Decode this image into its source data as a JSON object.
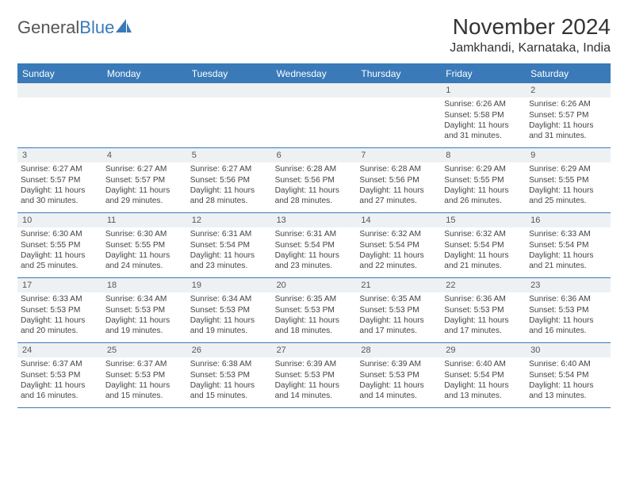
{
  "brand": {
    "part1": "General",
    "part2": "Blue"
  },
  "title": "November 2024",
  "location": "Jamkhandi, Karnataka, India",
  "dayHeaders": [
    "Sunday",
    "Monday",
    "Tuesday",
    "Wednesday",
    "Thursday",
    "Friday",
    "Saturday"
  ],
  "colors": {
    "accent": "#3a7ab8",
    "shade": "#eef1f4",
    "text": "#333333"
  },
  "startOffset": 5,
  "days": [
    {
      "n": 1,
      "sunrise": "6:26 AM",
      "sunset": "5:58 PM",
      "daylight": "11 hours and 31 minutes."
    },
    {
      "n": 2,
      "sunrise": "6:26 AM",
      "sunset": "5:57 PM",
      "daylight": "11 hours and 31 minutes."
    },
    {
      "n": 3,
      "sunrise": "6:27 AM",
      "sunset": "5:57 PM",
      "daylight": "11 hours and 30 minutes."
    },
    {
      "n": 4,
      "sunrise": "6:27 AM",
      "sunset": "5:57 PM",
      "daylight": "11 hours and 29 minutes."
    },
    {
      "n": 5,
      "sunrise": "6:27 AM",
      "sunset": "5:56 PM",
      "daylight": "11 hours and 28 minutes."
    },
    {
      "n": 6,
      "sunrise": "6:28 AM",
      "sunset": "5:56 PM",
      "daylight": "11 hours and 28 minutes."
    },
    {
      "n": 7,
      "sunrise": "6:28 AM",
      "sunset": "5:56 PM",
      "daylight": "11 hours and 27 minutes."
    },
    {
      "n": 8,
      "sunrise": "6:29 AM",
      "sunset": "5:55 PM",
      "daylight": "11 hours and 26 minutes."
    },
    {
      "n": 9,
      "sunrise": "6:29 AM",
      "sunset": "5:55 PM",
      "daylight": "11 hours and 25 minutes."
    },
    {
      "n": 10,
      "sunrise": "6:30 AM",
      "sunset": "5:55 PM",
      "daylight": "11 hours and 25 minutes."
    },
    {
      "n": 11,
      "sunrise": "6:30 AM",
      "sunset": "5:55 PM",
      "daylight": "11 hours and 24 minutes."
    },
    {
      "n": 12,
      "sunrise": "6:31 AM",
      "sunset": "5:54 PM",
      "daylight": "11 hours and 23 minutes."
    },
    {
      "n": 13,
      "sunrise": "6:31 AM",
      "sunset": "5:54 PM",
      "daylight": "11 hours and 23 minutes."
    },
    {
      "n": 14,
      "sunrise": "6:32 AM",
      "sunset": "5:54 PM",
      "daylight": "11 hours and 22 minutes."
    },
    {
      "n": 15,
      "sunrise": "6:32 AM",
      "sunset": "5:54 PM",
      "daylight": "11 hours and 21 minutes."
    },
    {
      "n": 16,
      "sunrise": "6:33 AM",
      "sunset": "5:54 PM",
      "daylight": "11 hours and 21 minutes."
    },
    {
      "n": 17,
      "sunrise": "6:33 AM",
      "sunset": "5:53 PM",
      "daylight": "11 hours and 20 minutes."
    },
    {
      "n": 18,
      "sunrise": "6:34 AM",
      "sunset": "5:53 PM",
      "daylight": "11 hours and 19 minutes."
    },
    {
      "n": 19,
      "sunrise": "6:34 AM",
      "sunset": "5:53 PM",
      "daylight": "11 hours and 19 minutes."
    },
    {
      "n": 20,
      "sunrise": "6:35 AM",
      "sunset": "5:53 PM",
      "daylight": "11 hours and 18 minutes."
    },
    {
      "n": 21,
      "sunrise": "6:35 AM",
      "sunset": "5:53 PM",
      "daylight": "11 hours and 17 minutes."
    },
    {
      "n": 22,
      "sunrise": "6:36 AM",
      "sunset": "5:53 PM",
      "daylight": "11 hours and 17 minutes."
    },
    {
      "n": 23,
      "sunrise": "6:36 AM",
      "sunset": "5:53 PM",
      "daylight": "11 hours and 16 minutes."
    },
    {
      "n": 24,
      "sunrise": "6:37 AM",
      "sunset": "5:53 PM",
      "daylight": "11 hours and 16 minutes."
    },
    {
      "n": 25,
      "sunrise": "6:37 AM",
      "sunset": "5:53 PM",
      "daylight": "11 hours and 15 minutes."
    },
    {
      "n": 26,
      "sunrise": "6:38 AM",
      "sunset": "5:53 PM",
      "daylight": "11 hours and 15 minutes."
    },
    {
      "n": 27,
      "sunrise": "6:39 AM",
      "sunset": "5:53 PM",
      "daylight": "11 hours and 14 minutes."
    },
    {
      "n": 28,
      "sunrise": "6:39 AM",
      "sunset": "5:53 PM",
      "daylight": "11 hours and 14 minutes."
    },
    {
      "n": 29,
      "sunrise": "6:40 AM",
      "sunset": "5:54 PM",
      "daylight": "11 hours and 13 minutes."
    },
    {
      "n": 30,
      "sunrise": "6:40 AM",
      "sunset": "5:54 PM",
      "daylight": "11 hours and 13 minutes."
    }
  ],
  "labels": {
    "sunrise": "Sunrise: ",
    "sunset": "Sunset: ",
    "daylight": "Daylight: "
  }
}
